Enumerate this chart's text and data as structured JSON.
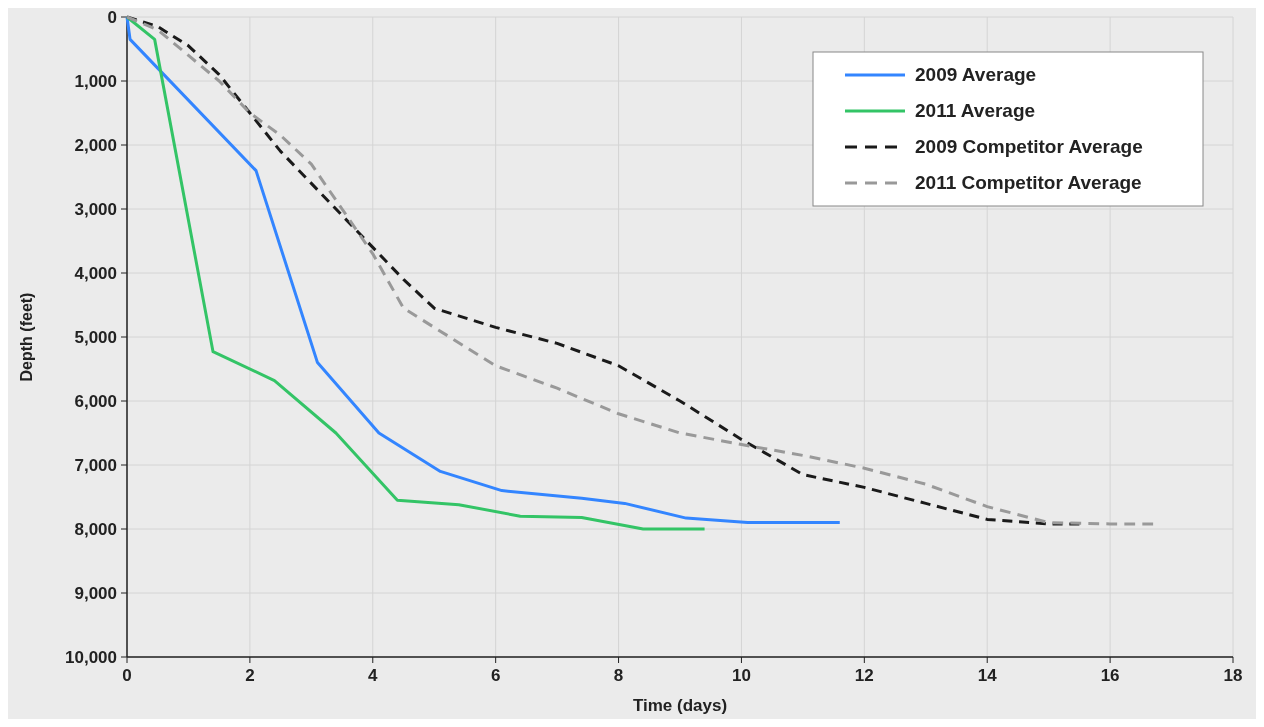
{
  "chart_data": {
    "type": "line",
    "xlabel": "Time (days)",
    "ylabel": "Depth (feet)",
    "xlim": [
      0,
      18
    ],
    "xticks": [
      0,
      2,
      4,
      6,
      8,
      10,
      12,
      14,
      16,
      18
    ],
    "ylim": [
      10000,
      0
    ],
    "yticks": [
      0,
      {
        "value": 1000,
        "label": "1,000"
      },
      {
        "value": 2000,
        "label": "2,000"
      },
      {
        "value": 3000,
        "label": "3,000"
      },
      {
        "value": 4000,
        "label": "4,000"
      },
      {
        "value": 5000,
        "label": "5,000"
      },
      {
        "value": 6000,
        "label": "6,000"
      },
      {
        "value": 7000,
        "label": "7,000"
      },
      {
        "value": 8000,
        "label": "8,000"
      },
      {
        "value": 9000,
        "label": "9,000"
      },
      {
        "value": 10000,
        "label": "10,000"
      }
    ],
    "grid": true,
    "legend": "top right",
    "marker": "none",
    "series": [
      {
        "name": "2009 Average",
        "color": "#3385ff",
        "line_style": "solid",
        "x": [
          0,
          0.05,
          2.1,
          3.1,
          4.1,
          5.1,
          6.1,
          7.4,
          8.1,
          9.1,
          10.1,
          11.6
        ],
        "values": [
          0,
          350,
          2400,
          5400,
          6500,
          7100,
          7400,
          7520,
          7600,
          7830,
          7900,
          7900
        ]
      },
      {
        "name": "2011 Average",
        "color": "#33c466",
        "line_style": "solid",
        "x": [
          0,
          0.45,
          1.4,
          2.4,
          3.4,
          4.4,
          5.4,
          6.4,
          7.4,
          8.4,
          9.4
        ],
        "values": [
          0,
          350,
          5230,
          5680,
          6500,
          7550,
          7620,
          7800,
          7820,
          8000,
          8000
        ]
      },
      {
        "name": "2009 Competitor Average",
        "color": "#1a1a1a",
        "line_style": "dashed",
        "x": [
          0,
          0.5,
          1,
          1.5,
          2,
          2.5,
          3,
          3.5,
          4,
          4.5,
          5,
          6,
          7,
          8,
          9,
          10,
          11,
          12,
          13,
          14,
          15,
          15.5
        ],
        "values": [
          0,
          150,
          450,
          900,
          1500,
          2100,
          2600,
          3100,
          3600,
          4100,
          4550,
          4850,
          5100,
          5450,
          6000,
          6600,
          7150,
          7350,
          7600,
          7850,
          7920,
          7920
        ]
      },
      {
        "name": "2011 Competitor Average",
        "color": "#999999",
        "line_style": "dashed",
        "x": [
          0,
          0.5,
          1,
          1.5,
          2,
          2.5,
          3,
          3.5,
          4,
          4.5,
          5,
          6,
          7,
          8,
          9,
          10,
          11,
          12,
          13,
          14,
          15,
          16,
          16.7
        ],
        "values": [
          0,
          200,
          600,
          1000,
          1500,
          1850,
          2300,
          3000,
          3700,
          4550,
          4850,
          5450,
          5800,
          6200,
          6500,
          6680,
          6850,
          7050,
          7300,
          7650,
          7900,
          7920,
          7920
        ]
      }
    ]
  }
}
